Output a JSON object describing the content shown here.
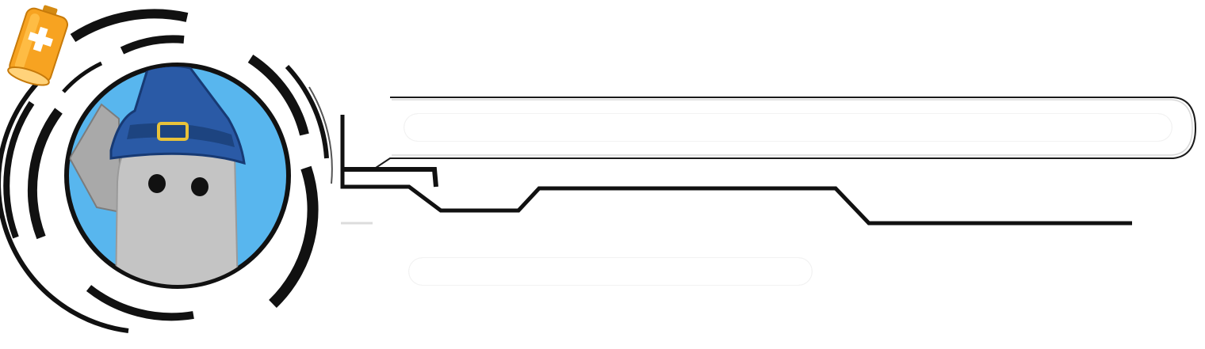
{
  "hud": {
    "player": {
      "avatar_icon": "wizard-ghost-avatar-icon",
      "avatar_bg_color": "#58b6ee",
      "hat_color": "#2a5aa6",
      "buckle_color": "#e8c23a",
      "body_color": "#c4c4c4"
    },
    "health_bar": {
      "fill_fraction": 1.0,
      "color": "#ffffff"
    },
    "energy_bar": {
      "icon": "battery-plus-icon",
      "icon_color": "#f7a321",
      "fill_fraction": 1.0,
      "color": "#ffffff"
    }
  }
}
